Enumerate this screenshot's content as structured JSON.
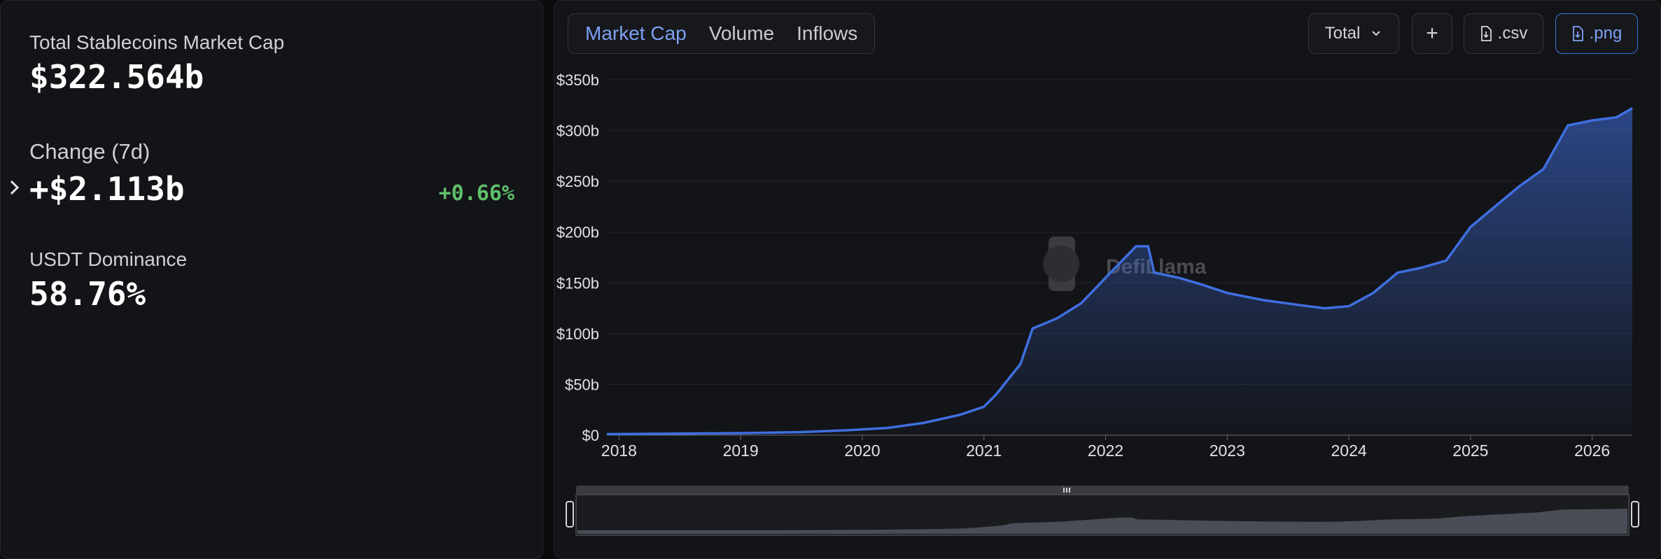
{
  "stats": {
    "market_cap_label": "Total Stablecoins Market Cap",
    "market_cap_value": "$322.564b",
    "change_label": "Change (7d)",
    "change_value": "+$2.113b",
    "change_pct": "+0.66%",
    "dominance_label": "USDT Dominance",
    "dominance_value": "58.76%"
  },
  "tabs": [
    "Market Cap",
    "Volume",
    "Inflows"
  ],
  "active_tab": "Market Cap",
  "controls": {
    "select_label": "Total",
    "add_label": "+",
    "csv_label": ".csv",
    "png_label": ".png"
  },
  "watermark": "DefiLlama",
  "colors": {
    "line": "#3f6fe0",
    "positive": "#5fbf6a",
    "accent": "#7da1f2"
  },
  "chart_data": {
    "type": "area",
    "title": "",
    "xlabel": "",
    "ylabel": "",
    "ylim": [
      0,
      350
    ],
    "y_ticks": [
      "$0",
      "$50b",
      "$100b",
      "$150b",
      "$200b",
      "$250b",
      "$300b",
      "$350b"
    ],
    "x_ticks": [
      "2018",
      "2019",
      "2020",
      "2021",
      "2022",
      "2023",
      "2024",
      "2025",
      "2026"
    ],
    "grid": true,
    "series": [
      {
        "unit": "billion USD",
        "x": [
          2017.9,
          2018.5,
          2019.0,
          2019.5,
          2019.9,
          2020.2,
          2020.5,
          2020.8,
          2021.0,
          2021.1,
          2021.3,
          2021.4,
          2021.6,
          2021.8,
          2022.0,
          2022.25,
          2022.35,
          2022.4,
          2022.6,
          2022.8,
          2023.0,
          2023.3,
          2023.6,
          2023.8,
          2024.0,
          2024.2,
          2024.4,
          2024.6,
          2024.8,
          2025.0,
          2025.2,
          2025.4,
          2025.6,
          2025.8,
          2026.0,
          2026.2,
          2026.33
        ],
        "y": [
          1,
          1.5,
          2,
          3,
          5,
          7,
          12,
          20,
          28,
          40,
          70,
          105,
          115,
          130,
          155,
          186,
          186,
          160,
          155,
          148,
          140,
          133,
          128,
          125,
          127,
          140,
          160,
          165,
          172,
          205,
          225,
          245,
          262,
          305,
          310,
          313,
          322
        ]
      }
    ]
  }
}
